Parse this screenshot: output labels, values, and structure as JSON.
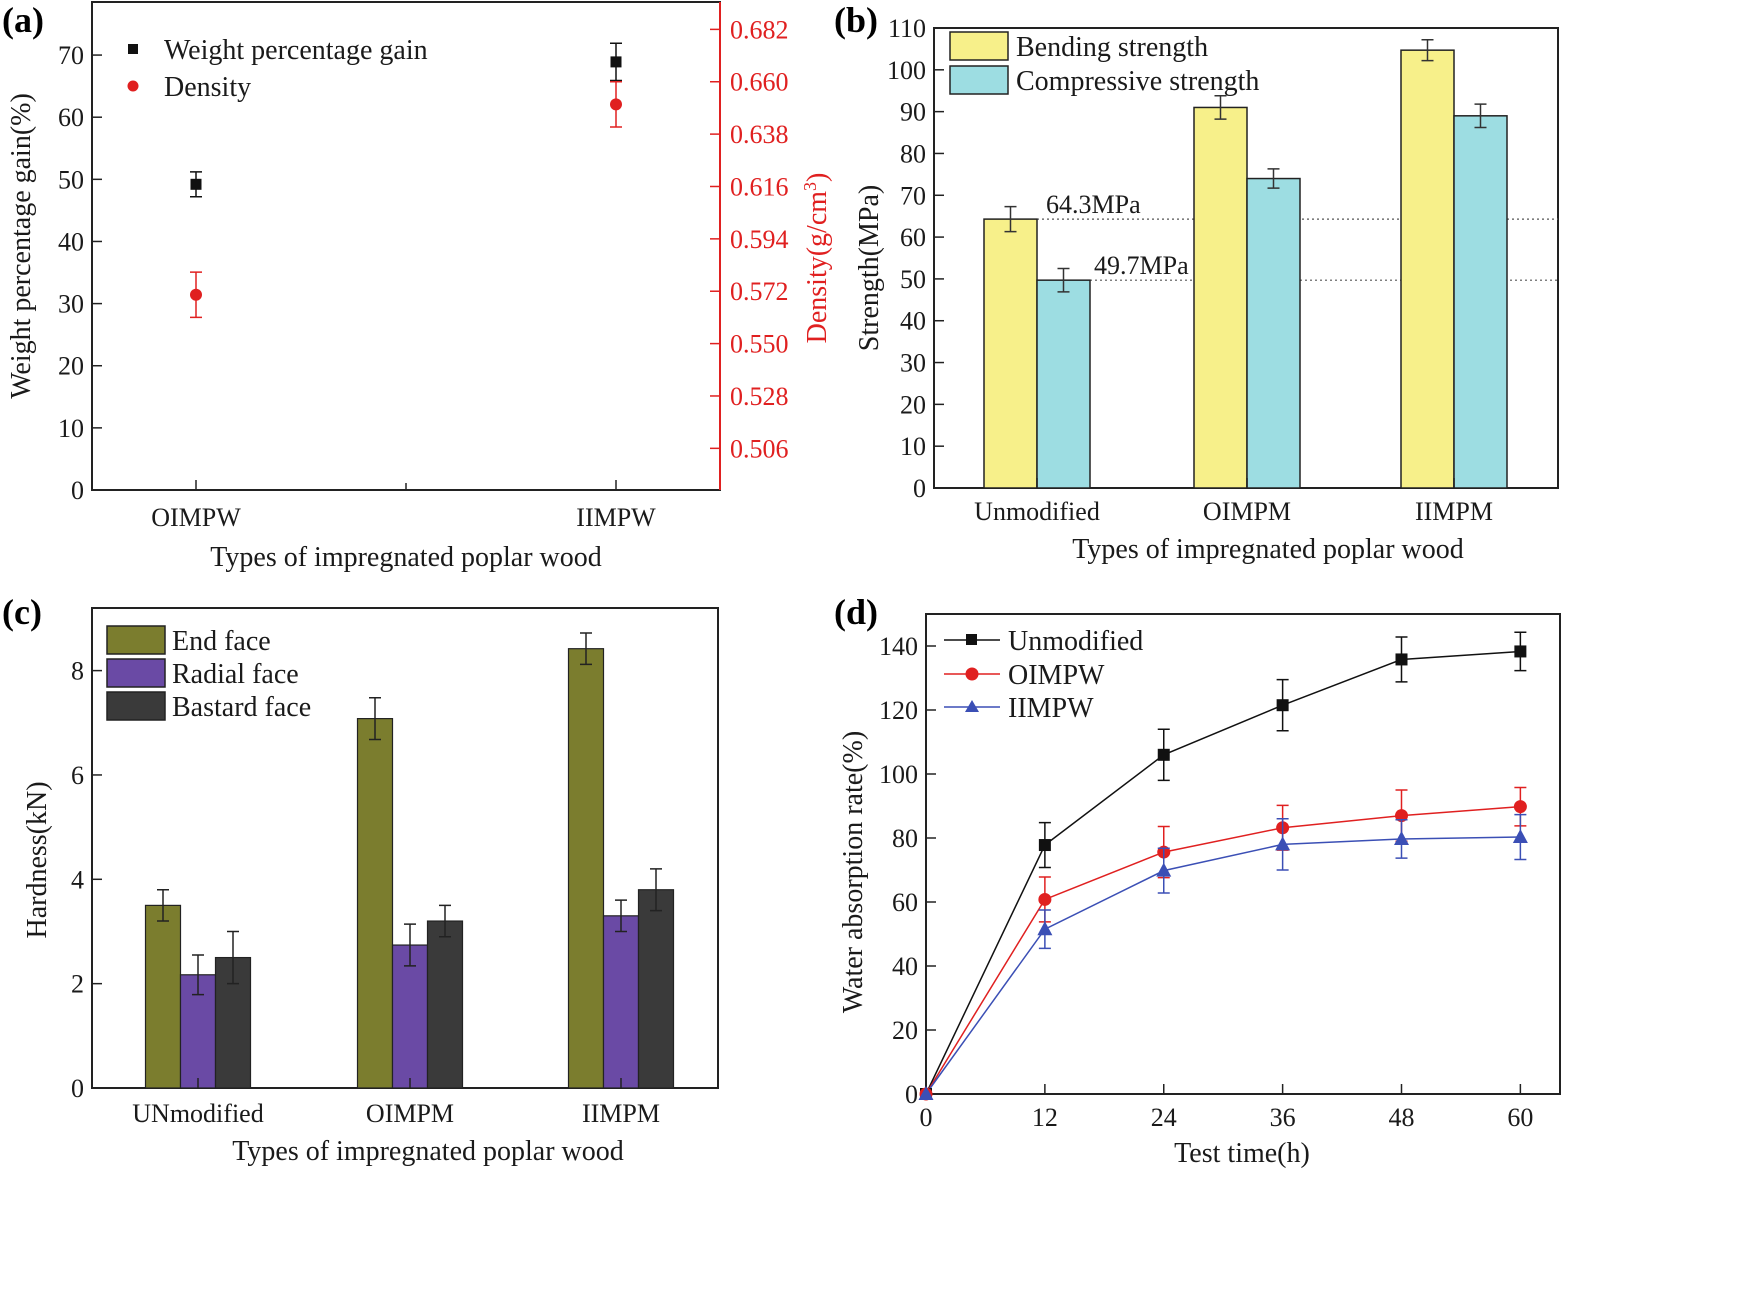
{
  "colors": {
    "black": "#111111",
    "red": "#e02020",
    "blue": "#3b4fb5",
    "yellow": "#f7f08a",
    "cyan": "#9ddde2",
    "olive": "#7b7d2e",
    "purple": "#6a4aa5",
    "dark": "#3a3a3a"
  },
  "chart_data": [
    {
      "id": "a",
      "panel_label": "(a)",
      "type": "scatter",
      "xlabel": "Types of impregnated poplar wood",
      "ylabel": "Weight percentage gain(%)",
      "y2label_main": "Density(g/cm",
      "y2label_sup": "3",
      "y2label_end": ")",
      "categories": [
        "OIMPW",
        "IIMPW"
      ],
      "ylim": [
        0,
        75
      ],
      "yticks": [
        0,
        10,
        20,
        30,
        40,
        50,
        60,
        70
      ],
      "y2lim": [
        0.4885,
        0.6935
      ],
      "y2ticks": [
        "0.506",
        "0.528",
        "0.550",
        "0.572",
        "0.594",
        "0.616",
        "0.638",
        "0.660",
        "0.682"
      ],
      "series": [
        {
          "name": "Weight percentage gain",
          "axis": "left",
          "marker": "square",
          "values": [
            49.2,
            68.9
          ],
          "errors": [
            2.0,
            3.0
          ]
        },
        {
          "name": "Density",
          "axis": "right",
          "marker": "circle",
          "values": [
            0.5705,
            0.6505
          ],
          "errors": [
            0.0095,
            0.0095
          ]
        }
      ]
    },
    {
      "id": "b",
      "panel_label": "(b)",
      "type": "bar",
      "xlabel": "Types of impregnated poplar wood",
      "ylabel": "Strength(MPa)",
      "categories": [
        "Unmodified",
        "OIMPM",
        "IIMPM"
      ],
      "ylim": [
        0,
        110
      ],
      "yticks": [
        0,
        10,
        20,
        30,
        40,
        50,
        60,
        70,
        80,
        90,
        100,
        110
      ],
      "series": [
        {
          "name": "Bending strength",
          "values": [
            64.3,
            91.0,
            104.7
          ],
          "errors": [
            3.0,
            2.8,
            2.5
          ]
        },
        {
          "name": "Compressive strength",
          "values": [
            49.7,
            74.0,
            89.0
          ],
          "errors": [
            2.8,
            2.3,
            2.8
          ]
        }
      ],
      "annotations": [
        {
          "text": "64.3MPa",
          "y": 64.3
        },
        {
          "text": "49.7MPa",
          "y": 49.7
        }
      ]
    },
    {
      "id": "c",
      "panel_label": "(c)",
      "type": "bar",
      "xlabel": "Types of impregnated poplar wood",
      "ylabel": "Hardness(kN)",
      "categories": [
        "UNmodified",
        "OIMPM",
        "IIMPM"
      ],
      "ylim": [
        0,
        9.2
      ],
      "yticks": [
        0,
        2,
        4,
        6,
        8
      ],
      "series": [
        {
          "name": "End face",
          "values": [
            3.5,
            7.08,
            8.42
          ],
          "errors": [
            0.3,
            0.4,
            0.3
          ]
        },
        {
          "name": "Radial face",
          "values": [
            2.17,
            2.74,
            3.3
          ],
          "errors": [
            0.38,
            0.4,
            0.3
          ]
        },
        {
          "name": "Bastard face",
          "values": [
            2.5,
            3.2,
            3.8
          ],
          "errors": [
            0.5,
            0.3,
            0.4
          ]
        }
      ]
    },
    {
      "id": "d",
      "panel_label": "(d)",
      "type": "line",
      "xlabel": "Test time(h)",
      "ylabel": "Water absorption rate(%)",
      "x": [
        0,
        12,
        24,
        36,
        48,
        60
      ],
      "xlim": [
        0,
        64
      ],
      "ylim": [
        0,
        150
      ],
      "xticks": [
        0,
        12,
        24,
        36,
        48,
        60
      ],
      "yticks": [
        0,
        20,
        40,
        60,
        80,
        100,
        120,
        140
      ],
      "series": [
        {
          "name": "Unmodified",
          "marker": "square",
          "values": [
            0,
            77.8,
            106,
            121.5,
            135.8,
            138.3
          ],
          "errors": [
            0,
            7,
            8,
            8,
            7,
            6
          ]
        },
        {
          "name": "OIMPW",
          "marker": "circle",
          "values": [
            0,
            60.8,
            75.6,
            83.2,
            87.0,
            89.8
          ],
          "errors": [
            0,
            7,
            8,
            7,
            8,
            6
          ]
        },
        {
          "name": "IIMPW",
          "marker": "triangle",
          "values": [
            0,
            51.5,
            69.8,
            78.0,
            79.7,
            80.3
          ],
          "errors": [
            0,
            6,
            7,
            8,
            6,
            7
          ]
        }
      ]
    }
  ]
}
